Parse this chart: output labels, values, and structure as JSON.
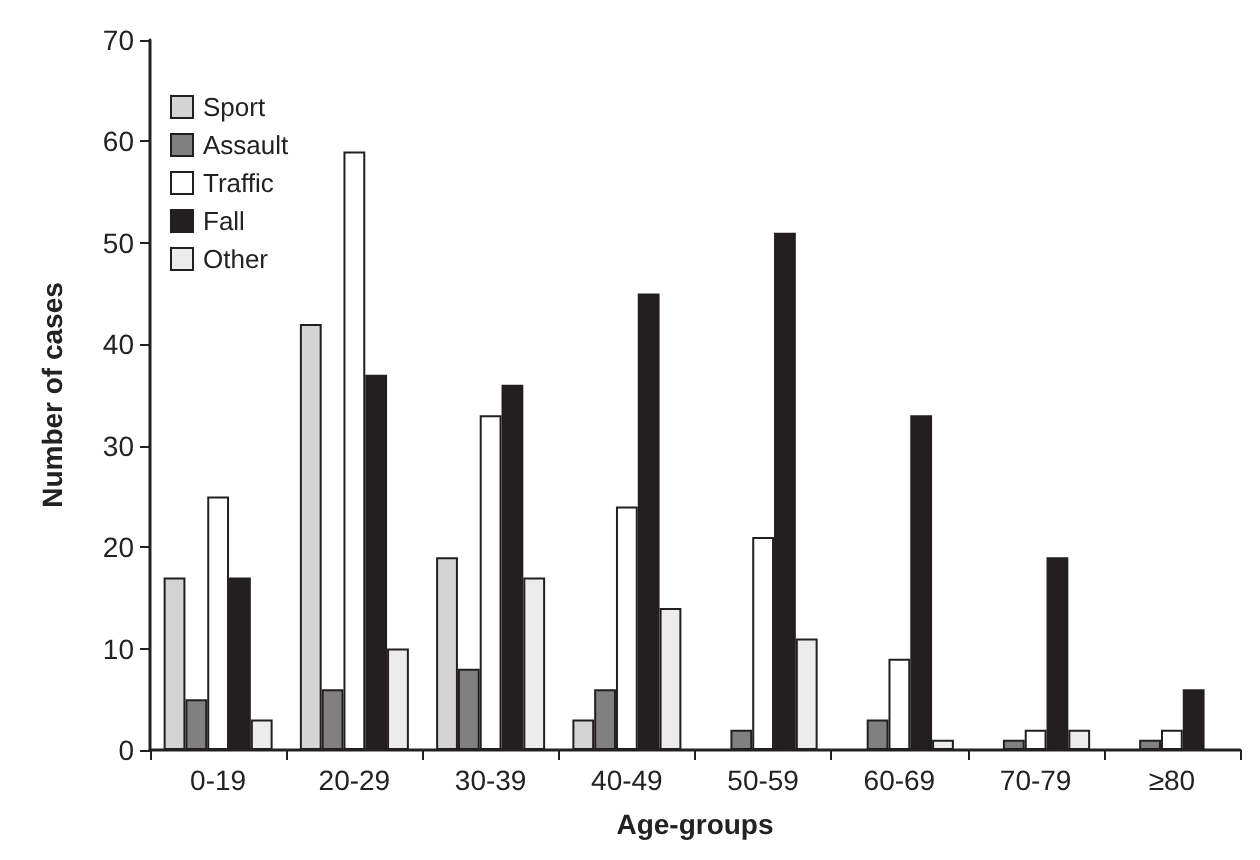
{
  "chart_data": {
    "type": "bar",
    "xlabel": "Age-groups",
    "ylabel": "Number of cases",
    "categories": [
      "0-19",
      "20-29",
      "30-39",
      "40-49",
      "50-59",
      "60-69",
      "70-79",
      "≥80"
    ],
    "series": [
      {
        "name": "Sport",
        "color": "#d4d4d4",
        "values": [
          17,
          42,
          19,
          3,
          null,
          null,
          null,
          null
        ]
      },
      {
        "name": "Assault",
        "color": "#808080",
        "values": [
          5,
          6,
          8,
          6,
          2,
          3,
          1,
          1
        ]
      },
      {
        "name": "Traffic",
        "color": "#ffffff",
        "values": [
          25,
          59,
          33,
          24,
          21,
          9,
          2,
          2
        ]
      },
      {
        "name": "Fall",
        "color": "#231f20",
        "values": [
          17,
          37,
          36,
          45,
          51,
          33,
          19,
          6
        ]
      },
      {
        "name": "Other",
        "color": "#ececec",
        "values": [
          3,
          10,
          17,
          14,
          11,
          1,
          2,
          null
        ]
      }
    ],
    "ylim": [
      0,
      70
    ],
    "yticks": [
      0,
      10,
      20,
      30,
      40,
      50,
      60,
      70
    ],
    "grid": false,
    "legend": "top left"
  }
}
